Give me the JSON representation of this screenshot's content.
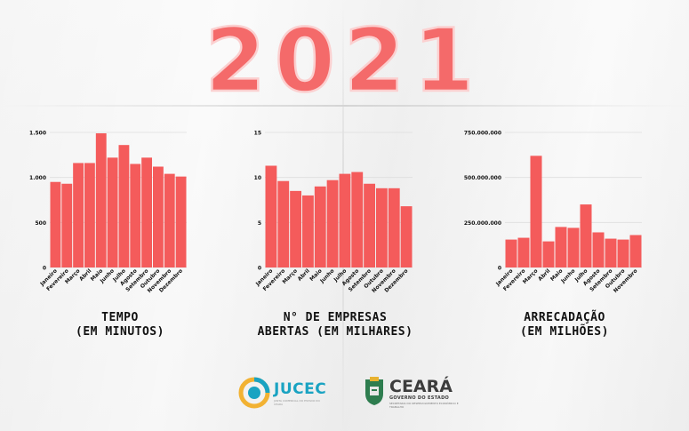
{
  "title": "2021",
  "colors": {
    "bar": "#f45b5b",
    "title_fill": "#f46a6a",
    "title_stroke": "#fbd0d0",
    "grid": "#dedede",
    "text": "#111111"
  },
  "chart_data": [
    {
      "type": "bar",
      "title": "TEMPO (EM MINUTOS)",
      "caption_lines": [
        "TEMPO",
        "(EM MINUTOS)"
      ],
      "categories": [
        "Janeiro",
        "Fevereiro",
        "Março",
        "Abril",
        "Maio",
        "Junho",
        "Julho",
        "Agosto",
        "Setembro",
        "Outubro",
        "Novembro",
        "Dezembro"
      ],
      "values": [
        950,
        930,
        1160,
        1160,
        1490,
        1220,
        1360,
        1150,
        1220,
        1120,
        1040,
        1010
      ],
      "yticks": [
        0,
        500,
        1000,
        1500
      ],
      "ytick_labels": [
        "0",
        "500",
        "1.000",
        "1.500"
      ],
      "ylim": [
        0,
        1500
      ],
      "grid": true
    },
    {
      "type": "bar",
      "title": "N° DE EMPRESAS ABERTAS (EM MILHARES)",
      "caption_lines": [
        "N° DE EMPRESAS",
        "ABERTAS (EM MILHARES)"
      ],
      "categories": [
        "Janeiro",
        "Fevereiro",
        "Março",
        "Abril",
        "Maio",
        "Junho",
        "Julho",
        "Agosto",
        "Setembro",
        "Outubro",
        "Novembro",
        "Dezembro"
      ],
      "values": [
        11.3,
        9.6,
        8.5,
        8.0,
        9.0,
        9.7,
        10.4,
        10.6,
        9.3,
        8.8,
        8.8,
        6.8
      ],
      "yticks": [
        0,
        5,
        10,
        15
      ],
      "ytick_labels": [
        "0",
        "5",
        "10",
        "15"
      ],
      "ylim": [
        0,
        15
      ],
      "grid": true
    },
    {
      "type": "bar",
      "title": "ARRECADAÇÃO (EM MILHÕES)",
      "caption_lines": [
        "ARRECADAÇÃO",
        "(EM MILHÕES)"
      ],
      "categories": [
        "Janeiro",
        "Fevereiro",
        "Março",
        "Abril",
        "Maio",
        "Junho",
        "Julho",
        "Agosto",
        "Setembro",
        "Outubro",
        "Novembro"
      ],
      "values": [
        155000000,
        165000000,
        620000000,
        145000000,
        225000000,
        220000000,
        350000000,
        195000000,
        160000000,
        155000000,
        180000000
      ],
      "yticks": [
        0,
        250000000,
        500000000,
        750000000
      ],
      "ytick_labels": [
        "0",
        "250.000.000",
        "500.000.000",
        "750.000.000"
      ],
      "ylim": [
        0,
        750000000
      ],
      "grid": true
    }
  ],
  "logos": {
    "jucec_name": "JUCEC",
    "jucec_subtitle": "JUNTA COMERCIAL DO ESTADO DO CEARÁ",
    "ceara_name": "CEARÁ",
    "ceara_line1": "GOVERNO DO ESTADO",
    "ceara_line2": "SECRETARIA DO DESENVOLVIMENTO ECONÔMICO E TRABALHO"
  }
}
